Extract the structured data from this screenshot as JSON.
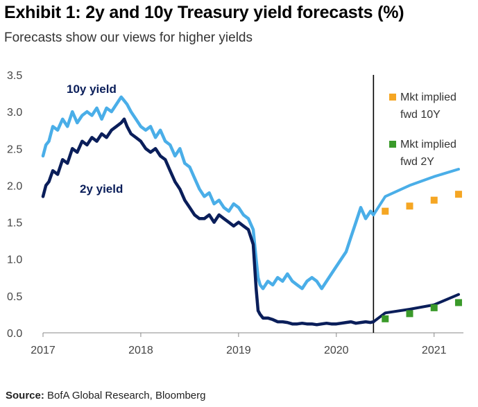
{
  "header": {
    "title": "Exhibit 1: 2y and 10y Treasury yield forecasts (%)",
    "subtitle": "Forecasts show our views for higher yields"
  },
  "footer": {
    "source_label": "Source:",
    "source_text": "BofA Global Research, Bloomberg"
  },
  "colors": {
    "ten_year": "#4aaee8",
    "two_year": "#0a1e5a",
    "mkt_10y": "#f5a623",
    "mkt_2y": "#3a9a2a",
    "axis": "#888888",
    "forecast_line": "#000000"
  },
  "chart_data": {
    "type": "line",
    "title": "Exhibit 1: 2y and 10y Treasury yield forecasts (%)",
    "subtitle": "Forecasts show our views for higher yields",
    "xlabel": "",
    "ylabel": "",
    "x_ticks": [
      "2017",
      "2018",
      "2019",
      "2020",
      "2021"
    ],
    "y_ticks": [
      "0.0",
      "0.5",
      "1.0",
      "1.5",
      "2.0",
      "2.5",
      "3.0",
      "3.5"
    ],
    "xlim": [
      2017.0,
      2021.3
    ],
    "ylim": [
      0,
      3.5
    ],
    "grid": false,
    "forecast_start": 2020.38,
    "series": [
      {
        "name": "10y yield",
        "kind": "line",
        "color": "#4aaee8",
        "x": [
          2017.0,
          2017.03,
          2017.06,
          2017.1,
          2017.15,
          2017.2,
          2017.25,
          2017.3,
          2017.35,
          2017.4,
          2017.45,
          2017.5,
          2017.55,
          2017.6,
          2017.65,
          2017.7,
          2017.75,
          2017.8,
          2017.83,
          2017.86,
          2017.9,
          2017.95,
          2018.0,
          2018.05,
          2018.1,
          2018.15,
          2018.2,
          2018.25,
          2018.3,
          2018.35,
          2018.4,
          2018.45,
          2018.5,
          2018.55,
          2018.6,
          2018.65,
          2018.7,
          2018.75,
          2018.8,
          2018.85,
          2018.9,
          2018.95,
          2019.0,
          2019.05,
          2019.1,
          2019.15,
          2019.18,
          2019.2,
          2019.22,
          2019.25,
          2019.3,
          2019.35,
          2019.4,
          2019.45,
          2019.5,
          2019.55,
          2019.6,
          2019.65,
          2019.7,
          2019.75,
          2019.8,
          2019.85,
          2019.9,
          2019.95,
          2020.0,
          2020.05,
          2020.1,
          2020.15,
          2020.2,
          2020.25,
          2020.3,
          2020.35,
          2020.38
        ],
        "values": [
          2.4,
          2.55,
          2.6,
          2.8,
          2.75,
          2.9,
          2.8,
          3.0,
          2.85,
          2.95,
          3.0,
          2.95,
          3.05,
          2.9,
          3.05,
          3.0,
          3.1,
          3.2,
          3.15,
          3.1,
          3.0,
          2.9,
          2.8,
          2.75,
          2.8,
          2.65,
          2.75,
          2.6,
          2.55,
          2.4,
          2.5,
          2.3,
          2.25,
          2.1,
          1.95,
          1.85,
          1.9,
          1.75,
          1.8,
          1.7,
          1.65,
          1.75,
          1.7,
          1.6,
          1.55,
          1.4,
          1.0,
          0.75,
          0.65,
          0.6,
          0.7,
          0.65,
          0.75,
          0.7,
          0.8,
          0.7,
          0.65,
          0.6,
          0.7,
          0.75,
          0.7,
          0.6,
          0.7,
          0.8,
          0.9,
          1.0,
          1.1,
          1.3,
          1.5,
          1.7,
          1.55,
          1.65,
          1.6
        ]
      },
      {
        "name": "2y yield",
        "kind": "line",
        "color": "#0a1e5a",
        "x": [
          2017.0,
          2017.03,
          2017.06,
          2017.1,
          2017.15,
          2017.2,
          2017.25,
          2017.3,
          2017.35,
          2017.4,
          2017.45,
          2017.5,
          2017.55,
          2017.6,
          2017.65,
          2017.7,
          2017.75,
          2017.8,
          2017.83,
          2017.86,
          2017.9,
          2017.95,
          2018.0,
          2018.05,
          2018.1,
          2018.15,
          2018.2,
          2018.25,
          2018.3,
          2018.35,
          2018.4,
          2018.45,
          2018.5,
          2018.55,
          2018.6,
          2018.65,
          2018.7,
          2018.75,
          2018.8,
          2018.85,
          2018.9,
          2018.95,
          2019.0,
          2019.05,
          2019.1,
          2019.15,
          2019.18,
          2019.2,
          2019.22,
          2019.25,
          2019.3,
          2019.35,
          2019.4,
          2019.45,
          2019.5,
          2019.55,
          2019.6,
          2019.65,
          2019.7,
          2019.75,
          2019.8,
          2019.85,
          2019.9,
          2019.95,
          2020.0,
          2020.05,
          2020.1,
          2020.15,
          2020.2,
          2020.25,
          2020.3,
          2020.35,
          2020.38
        ],
        "values": [
          1.85,
          2.0,
          2.05,
          2.2,
          2.15,
          2.35,
          2.3,
          2.5,
          2.45,
          2.6,
          2.55,
          2.65,
          2.6,
          2.7,
          2.65,
          2.75,
          2.8,
          2.85,
          2.9,
          2.8,
          2.7,
          2.65,
          2.6,
          2.5,
          2.45,
          2.5,
          2.4,
          2.35,
          2.2,
          2.05,
          1.95,
          1.8,
          1.7,
          1.6,
          1.55,
          1.55,
          1.6,
          1.5,
          1.6,
          1.55,
          1.5,
          1.45,
          1.5,
          1.45,
          1.4,
          1.2,
          0.6,
          0.3,
          0.25,
          0.2,
          0.2,
          0.18,
          0.15,
          0.15,
          0.14,
          0.12,
          0.12,
          0.13,
          0.12,
          0.12,
          0.11,
          0.12,
          0.13,
          0.12,
          0.12,
          0.13,
          0.14,
          0.15,
          0.13,
          0.14,
          0.15,
          0.14,
          0.15
        ]
      },
      {
        "name": "10y forecast",
        "kind": "forecast",
        "color": "#4aaee8",
        "x": [
          2020.38,
          2020.5,
          2020.75,
          2021.0,
          2021.25
        ],
        "values": [
          1.6,
          1.85,
          2.0,
          2.12,
          2.22
        ]
      },
      {
        "name": "2y forecast",
        "kind": "forecast",
        "color": "#0a1e5a",
        "x": [
          2020.38,
          2020.5,
          2020.75,
          2021.0,
          2021.25
        ],
        "values": [
          0.15,
          0.27,
          0.32,
          0.38,
          0.52
        ]
      },
      {
        "name": "Mkt implied fwd 10Y",
        "kind": "points",
        "color": "#f5a623",
        "x": [
          2020.5,
          2020.75,
          2021.0,
          2021.25
        ],
        "values": [
          1.65,
          1.72,
          1.8,
          1.88
        ]
      },
      {
        "name": "Mkt implied fwd 2Y",
        "kind": "points",
        "color": "#3a9a2a",
        "x": [
          2020.5,
          2020.75,
          2021.0,
          2021.25
        ],
        "values": [
          0.19,
          0.26,
          0.34,
          0.41
        ]
      }
    ],
    "annotations": [
      {
        "id": "label-10y",
        "text": "10y yield"
      },
      {
        "id": "label-2y",
        "text": "2y yield"
      }
    ],
    "legend": {
      "placement": "top-right",
      "entries": [
        {
          "line1": "Mkt implied",
          "line2": "fwd 10Y",
          "color": "#f5a623"
        },
        {
          "line1": "Mkt implied",
          "line2": "fwd 2Y",
          "color": "#3a9a2a"
        }
      ]
    }
  }
}
